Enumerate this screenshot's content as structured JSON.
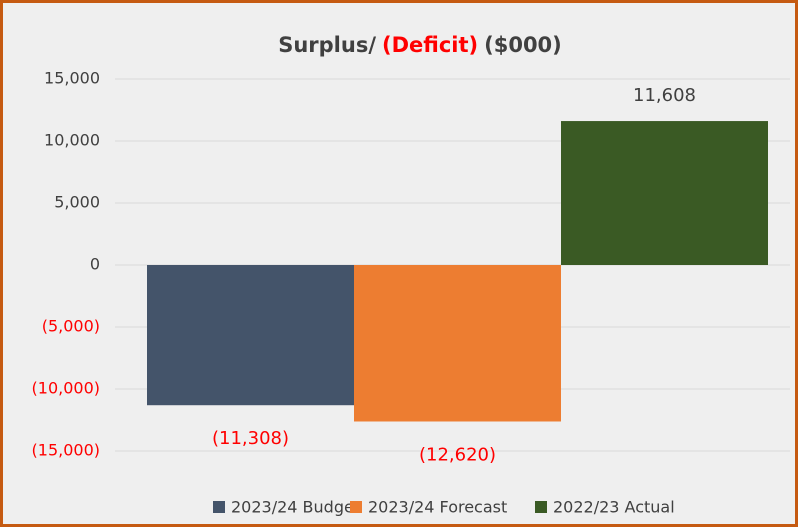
{
  "chart_data": {
    "type": "bar",
    "title": [
      {
        "text": "Surplus/",
        "color": "#404040"
      },
      {
        "text": "(Deficit)",
        "color": "#ff0000"
      },
      {
        "text": "($000)",
        "color": "#404040"
      }
    ],
    "series": [
      {
        "name": "2023/24 Budget",
        "color": "#44546a",
        "values": [
          -11308
        ],
        "value_labels": [
          "(11,308)"
        ]
      },
      {
        "name": "2023/24 Forecast",
        "color": "#ed7d31",
        "values": [
          -12620
        ],
        "value_labels": [
          "(12,620)"
        ]
      },
      {
        "name": "2022/23 Actual",
        "color": "#3a5a24",
        "values": [
          11608
        ],
        "value_labels": [
          "11,608"
        ]
      }
    ],
    "ylim": [
      -15000,
      15000
    ],
    "yticks": [
      {
        "value": -15000,
        "label": "(15,000)"
      },
      {
        "value": -10000,
        "label": "(10,000)"
      },
      {
        "value": -5000,
        "label": "(5,000)"
      },
      0,
      {
        "value": 5000,
        "label": "5,000"
      },
      {
        "value": 10000,
        "label": "10,000"
      },
      {
        "value": 15000,
        "label": "15,000"
      }
    ],
    "grid": true,
    "negative_color": "#ff0000",
    "positive_color": "#404040",
    "legend": "bottom"
  }
}
